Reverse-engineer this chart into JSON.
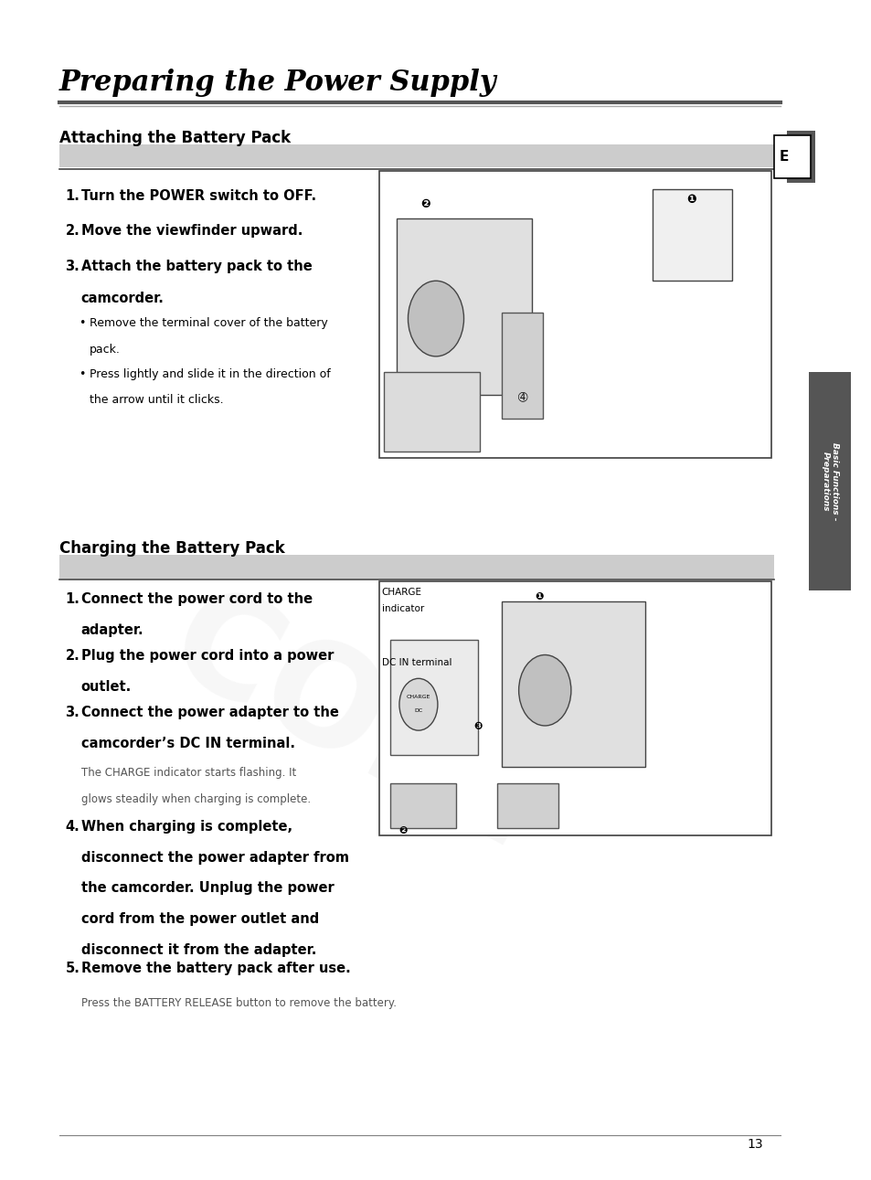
{
  "page_bg": "#ffffff",
  "page_width": 9.54,
  "page_height": 12.91,
  "dpi": 100,
  "main_title": "Preparing the Power Supply",
  "section1_title": "Attaching the Battery Pack",
  "section2_title": "Charging the Battery Pack",
  "tab_e_text": "E",
  "sidebar_text": "Basic Functions -\nPreparations",
  "page_number": "13",
  "watermark_text": "COPY",
  "colors": {
    "black": "#000000",
    "white": "#ffffff",
    "light_gray": "#d0d0d0",
    "medium_gray": "#808080",
    "dark_gray": "#404040",
    "tab_gray": "#555555",
    "note_gray": "#555555",
    "watermark_gray": "#cccccc",
    "line_color": "#555555",
    "section_underline": "#444444"
  }
}
